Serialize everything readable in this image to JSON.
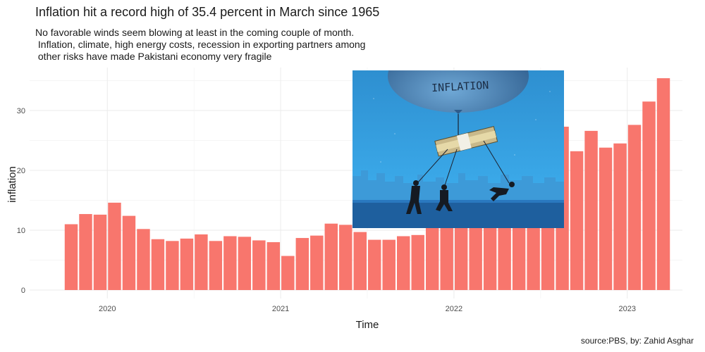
{
  "title": "Inflation hit a record high of 35.4 percent in March since 1965",
  "subtitle_lines": [
    "No favorable winds seem blowing at least in the coming couple of month.",
    " Inflation, climate, high energy costs, recession in exporting partners among",
    " other risks have made Pakistani economy very fragile"
  ],
  "caption": "source:PBS, by: Zahid Asghar",
  "inset_image": {
    "icon": "inflation-balloon-illustration-icon",
    "balloon_text": "INFLATION"
  },
  "chart_data": {
    "type": "bar",
    "xlabel": "Time",
    "ylabel": "inflation",
    "x_ticks": [
      "2020",
      "2021",
      "2022",
      "2023"
    ],
    "y_ticks": [
      0,
      10,
      20,
      30
    ],
    "ylim": [
      0,
      37
    ],
    "grid": true,
    "legend": "none",
    "bar_color": "#F8766D",
    "categories": [
      "2019-10",
      "2019-11",
      "2019-12",
      "2020-01",
      "2020-02",
      "2020-03",
      "2020-04",
      "2020-05",
      "2020-06",
      "2020-07",
      "2020-08",
      "2020-09",
      "2020-10",
      "2020-11",
      "2020-12",
      "2021-01",
      "2021-02",
      "2021-03",
      "2021-04",
      "2021-05",
      "2021-06",
      "2021-07",
      "2021-08",
      "2021-09",
      "2021-10",
      "2021-11",
      "2021-12",
      "2022-01",
      "2022-02",
      "2022-03",
      "2022-04",
      "2022-05",
      "2022-06",
      "2022-07",
      "2022-08",
      "2022-09",
      "2022-10",
      "2022-11",
      "2022-12",
      "2023-01",
      "2023-02",
      "2023-03"
    ],
    "values": [
      11.0,
      12.7,
      12.6,
      14.6,
      12.4,
      10.2,
      8.5,
      8.2,
      8.6,
      9.3,
      8.2,
      9.0,
      8.9,
      8.3,
      8.0,
      5.7,
      8.7,
      9.1,
      11.1,
      10.9,
      9.7,
      8.4,
      8.4,
      9.0,
      9.2,
      11.5,
      12.3,
      13.0,
      12.2,
      12.7,
      13.4,
      13.8,
      21.3,
      24.9,
      27.3,
      23.2,
      26.6,
      23.8,
      24.5,
      27.6,
      31.5,
      35.4
    ]
  }
}
